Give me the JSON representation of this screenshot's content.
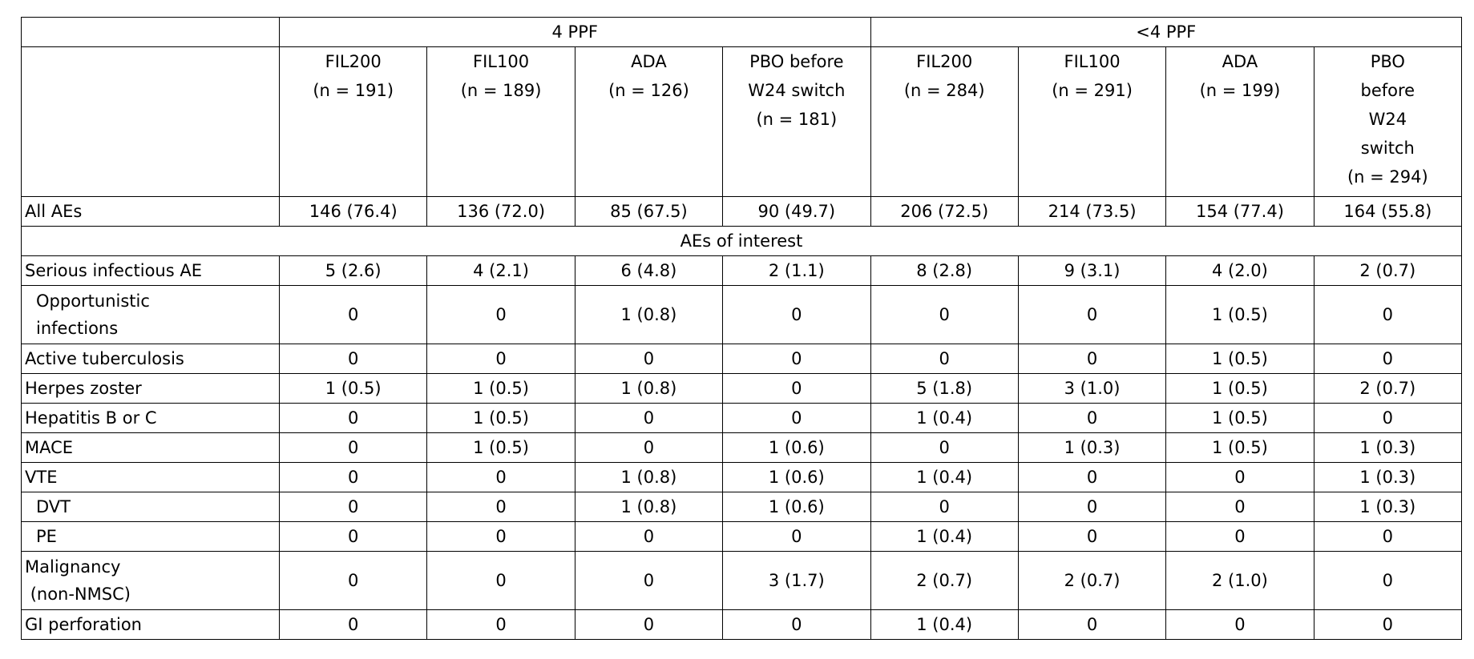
{
  "table": {
    "groups": [
      "4 PPF",
      "<4 PPF"
    ],
    "columns": [
      [
        "FIL200",
        "(n = 191)"
      ],
      [
        "FIL100",
        "(n = 189)"
      ],
      [
        "ADA",
        "(n = 126)"
      ],
      [
        "PBO before",
        "W24 switch",
        "(n = 181)"
      ],
      [
        "FIL200",
        "(n = 284)"
      ],
      [
        "FIL100",
        "(n = 291)"
      ],
      [
        "ADA",
        "(n = 199)"
      ],
      [
        "PBO",
        "before",
        "W24",
        "switch",
        "(n = 294)"
      ]
    ],
    "rows": [
      {
        "label": "All AEs",
        "values": [
          "146 (76.4)",
          "136 (72.0)",
          "85 (67.5)",
          "90 (49.7)",
          "206 (72.5)",
          "214 (73.5)",
          "154 (77.4)",
          "164 (55.8)"
        ]
      },
      {
        "section": "AEs of interest"
      },
      {
        "label": "Serious infectious AE",
        "values": [
          "5 (2.6)",
          "4 (2.1)",
          "6 (4.8)",
          "2 (1.1)",
          "8 (2.8)",
          "9 (3.1)",
          "4 (2.0)",
          "2 (0.7)"
        ]
      },
      {
        "label": "Opportunistic\ninfections",
        "values": [
          "0",
          "0",
          "1 (0.8)",
          "0",
          "0",
          "0",
          "1 (0.5)",
          "0"
        ]
      },
      {
        "label": "Active tuberculosis",
        "values": [
          "0",
          "0",
          "0",
          "0",
          "0",
          "0",
          "1 (0.5)",
          "0"
        ]
      },
      {
        "label": "Herpes zoster",
        "values": [
          "1 (0.5)",
          "1 (0.5)",
          "1 (0.8)",
          "0",
          "5 (1.8)",
          "3 (1.0)",
          "1 (0.5)",
          "2 (0.7)"
        ]
      },
      {
        "label": "Hepatitis B or C",
        "values": [
          "0",
          "1 (0.5)",
          "0",
          "0",
          "1 (0.4)",
          "0",
          "1 (0.5)",
          "0"
        ]
      },
      {
        "label": "MACE",
        "values": [
          "0",
          "1 (0.5)",
          "0",
          "1 (0.6)",
          "0",
          "1 (0.3)",
          "1 (0.5)",
          "1 (0.3)"
        ]
      },
      {
        "label": "VTE",
        "values": [
          "0",
          "0",
          "1 (0.8)",
          "1 (0.6)",
          "1 (0.4)",
          "0",
          "0",
          "1 (0.3)"
        ]
      },
      {
        "label": "DVT",
        "values": [
          "0",
          "0",
          "1 (0.8)",
          "1 (0.6)",
          "0",
          "0",
          "0",
          "1 (0.3)"
        ]
      },
      {
        "label": "PE",
        "values": [
          "0",
          "0",
          "0",
          "0",
          "1 (0.4)",
          "0",
          "0",
          "0"
        ]
      },
      {
        "label": "Malignancy\n (non-NMSC)",
        "values": [
          "0",
          "0",
          "0",
          "3 (1.7)",
          "2 (0.7)",
          "2 (0.7)",
          "2 (1.0)",
          "0"
        ]
      },
      {
        "label": "GI perforation",
        "values": [
          "0",
          "0",
          "0",
          "0",
          "1 (0.4)",
          "0",
          "0",
          "0"
        ]
      }
    ]
  }
}
